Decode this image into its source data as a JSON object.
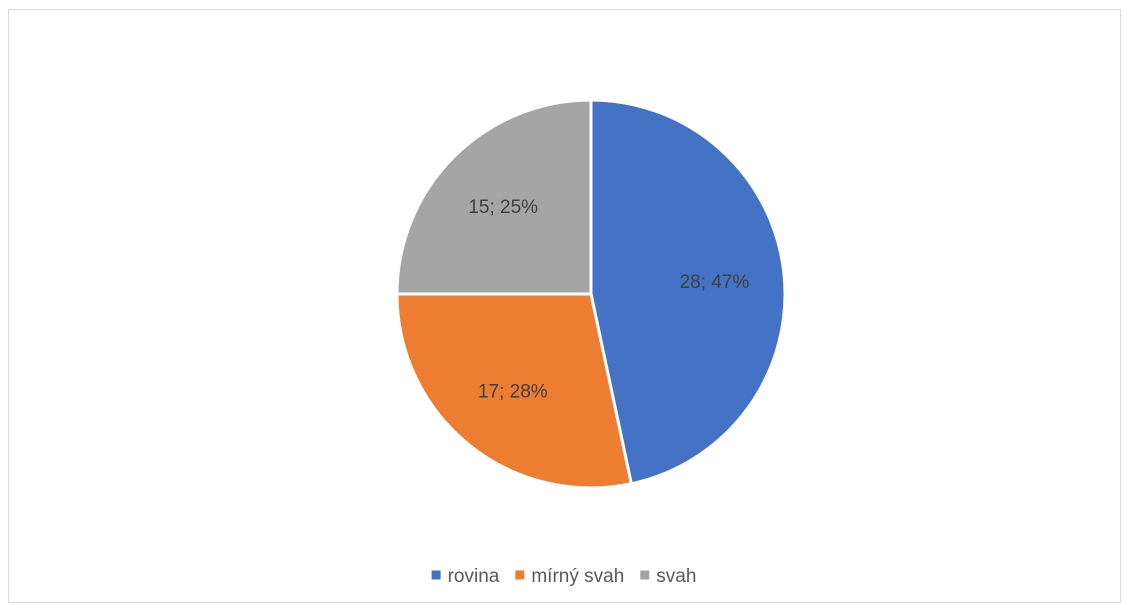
{
  "chart_data": {
    "type": "pie",
    "title": "",
    "start_angle_deg": 0,
    "direction": "clockwise",
    "slice_border_color": "#ffffff",
    "legend_position": "bottom",
    "slices": [
      {
        "label": "rovina",
        "value": 28,
        "percent": "47%",
        "data_label": "28; 47%",
        "color": "#4472C4"
      },
      {
        "label": "mírný svah",
        "value": 17,
        "percent": "28%",
        "data_label": "17; 28%",
        "color": "#ED7D31"
      },
      {
        "label": "svah",
        "value": 15,
        "percent": "25%",
        "data_label": "15; 25%",
        "color": "#A5A5A5"
      }
    ]
  }
}
